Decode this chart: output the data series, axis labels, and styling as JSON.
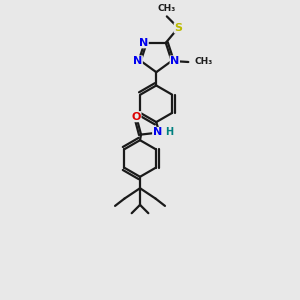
{
  "background_color": "#e8e8e8",
  "figsize": [
    3.0,
    3.0
  ],
  "dpi": 100,
  "bond_color": "#1a1a1a",
  "bond_lw": 1.6,
  "atom_colors": {
    "N": "#0000ee",
    "O": "#dd0000",
    "S": "#bbbb00",
    "H": "#008080",
    "C": "#1a1a1a"
  },
  "font_size": 8.0,
  "font_size_small": 7.0
}
